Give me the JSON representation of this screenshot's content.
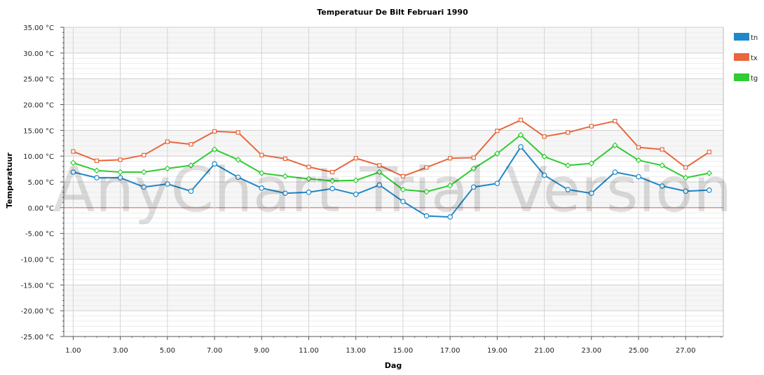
{
  "chart_data": {
    "type": "line",
    "title": "Temperatuur De Bilt Februari 1990",
    "xlabel": "Dag",
    "ylabel": "Temperatuur",
    "x": [
      1,
      2,
      3,
      4,
      5,
      6,
      7,
      8,
      9,
      10,
      11,
      12,
      13,
      14,
      15,
      16,
      17,
      18,
      19,
      20,
      21,
      22,
      23,
      24,
      25,
      26,
      27,
      28
    ],
    "xlim": [
      0.6,
      28.6
    ],
    "ylim": [
      -25,
      35
    ],
    "x_tick_labels": [
      "1.00",
      "3.00",
      "5.00",
      "7.00",
      "9.00",
      "11.00",
      "13.00",
      "15.00",
      "17.00",
      "19.00",
      "21.00",
      "23.00",
      "25.00",
      "27.00"
    ],
    "y_tick_labels": [
      "35.00 °C",
      "30.00 °C",
      "25.00 °C",
      "20.00 °C",
      "15.00 °C",
      "10.00 °C",
      "5.00 °C",
      "0.00 °C",
      "-5.00 °C",
      "-10.00 °C",
      "-15.00 °C",
      "-20.00 °C",
      "-25.00 °C"
    ],
    "grid": true,
    "legend_position": "top-right",
    "watermark": "AnyChart Trial Version",
    "series": [
      {
        "name": "tn",
        "color": "#1e88c8",
        "marker": "circle",
        "values": [
          6.9,
          5.8,
          5.8,
          4.0,
          4.6,
          3.2,
          8.5,
          5.9,
          3.8,
          2.8,
          3.0,
          3.7,
          2.6,
          4.4,
          1.2,
          -1.6,
          -1.8,
          4.0,
          4.7,
          11.8,
          6.3,
          3.5,
          2.8,
          6.9,
          6.0,
          4.2,
          3.2,
          3.4
        ]
      },
      {
        "name": "tx",
        "color": "#e8673c",
        "marker": "square",
        "values": [
          10.9,
          9.1,
          9.3,
          10.2,
          12.8,
          12.3,
          14.8,
          14.6,
          10.2,
          9.5,
          7.9,
          6.9,
          9.6,
          8.2,
          6.1,
          7.8,
          9.6,
          9.7,
          14.9,
          17.0,
          13.8,
          14.6,
          15.8,
          16.8,
          11.7,
          11.3,
          7.8,
          10.8
        ]
      },
      {
        "name": "tg",
        "color": "#2fcc32",
        "marker": "diamond",
        "values": [
          8.7,
          7.2,
          6.9,
          6.9,
          7.6,
          8.2,
          11.3,
          9.3,
          6.7,
          6.1,
          5.6,
          5.2,
          5.3,
          6.9,
          3.5,
          3.1,
          4.3,
          7.6,
          10.5,
          14.1,
          9.9,
          8.2,
          8.6,
          12.1,
          9.2,
          8.2,
          5.8,
          6.7
        ]
      }
    ]
  }
}
